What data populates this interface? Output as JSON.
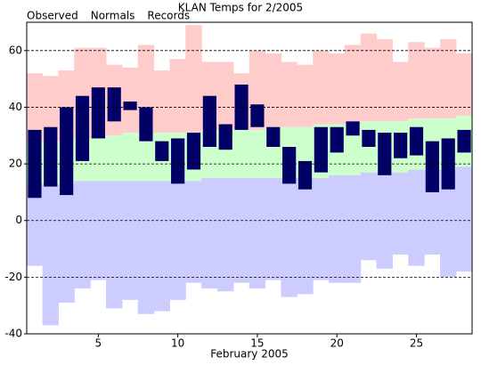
{
  "chart_data": {
    "type": "floating_bar",
    "title": "KLAN Temps for 2/2005",
    "x_label": "February 2005",
    "x": [
      1,
      2,
      3,
      4,
      5,
      6,
      7,
      8,
      9,
      10,
      11,
      12,
      13,
      14,
      15,
      16,
      17,
      18,
      19,
      20,
      21,
      22,
      23,
      24,
      25,
      26,
      27,
      28
    ],
    "xlim": [
      0.5,
      28.5
    ],
    "xticks": [
      5,
      10,
      15,
      20,
      25
    ],
    "ylim": [
      -40,
      70
    ],
    "yticks": [
      -40,
      -20,
      0,
      20,
      40,
      60
    ],
    "grid": true,
    "series": [
      {
        "name": "Observed",
        "color": "#000066",
        "high": [
          32,
          33,
          40,
          44,
          47,
          47,
          42,
          40,
          28,
          29,
          31,
          44,
          34,
          48,
          41,
          33,
          26,
          21,
          33,
          33,
          35,
          32,
          31,
          31,
          33,
          28,
          29,
          32
        ],
        "low": [
          8,
          12,
          9,
          21,
          29,
          35,
          39,
          28,
          21,
          13,
          18,
          26,
          25,
          32,
          33,
          26,
          13,
          11,
          17,
          24,
          30,
          26,
          16,
          22,
          23,
          10,
          11,
          24
        ]
      },
      {
        "name": "Normals",
        "color": "#ccffcc",
        "high": [
          28,
          28,
          28,
          29,
          29,
          30,
          31,
          31,
          31,
          31,
          31,
          32,
          32,
          32,
          32,
          33,
          33,
          33,
          34,
          34,
          34,
          35,
          35,
          35,
          36,
          36,
          36,
          37
        ],
        "low": [
          13,
          13,
          13,
          14,
          14,
          14,
          14,
          14,
          14,
          14,
          14,
          15,
          15,
          15,
          15,
          15,
          15,
          15,
          15,
          16,
          16,
          17,
          17,
          17,
          18,
          18,
          18,
          19
        ]
      },
      {
        "name": "Records",
        "color": "#ffcccc",
        "low_color": "#ccccff",
        "high": [
          52,
          51,
          53,
          61,
          61,
          55,
          54,
          62,
          53,
          57,
          69,
          56,
          56,
          52,
          60,
          59,
          56,
          55,
          60,
          59,
          62,
          66,
          64,
          56,
          63,
          61,
          64,
          59
        ],
        "low": [
          -16,
          -37,
          -29,
          -24,
          -21,
          -31,
          -28,
          -33,
          -32,
          -28,
          -22,
          -24,
          -25,
          -22,
          -24,
          -21,
          -27,
          -26,
          -21,
          -22,
          -22,
          -14,
          -17,
          -12,
          -16,
          -12,
          -20,
          -18
        ]
      }
    ]
  }
}
